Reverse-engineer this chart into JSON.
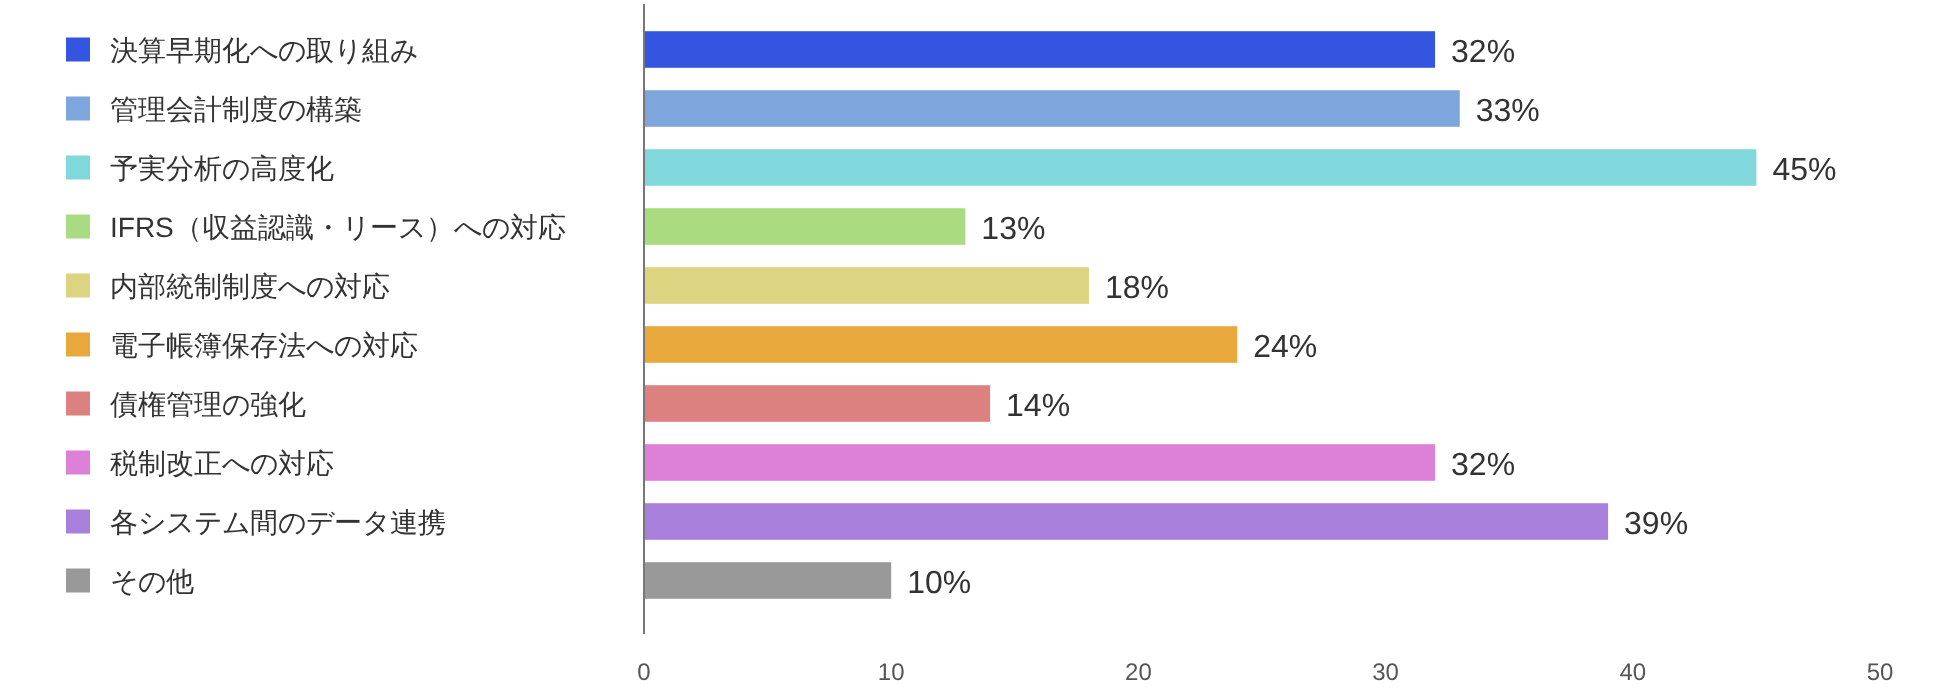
{
  "chart_data": {
    "type": "bar",
    "orientation": "horizontal",
    "categories": [
      "決算早期化への取り組み",
      "管理会計制度の構築",
      "予実分析の高度化",
      "IFRS（収益認識・リース）への対応",
      "内部統制制度への対応",
      "電子帳簿保存法への対応",
      "債権管理の強化",
      "税制改正への対応",
      "各システム間のデータ連携",
      "その他"
    ],
    "values": [
      32,
      33,
      45,
      13,
      18,
      24,
      14,
      32,
      39,
      10
    ],
    "colors": [
      "#3355e0",
      "#7ea6dc",
      "#80d8dc",
      "#a9dc80",
      "#dcd480",
      "#e8a83c",
      "#dc8080",
      "#dc80d8",
      "#a880dc",
      "#999999"
    ],
    "value_labels": [
      "32%",
      "33%",
      "45%",
      "13%",
      "18%",
      "24%",
      "14%",
      "32%",
      "39%",
      "10%"
    ],
    "xlim": [
      0,
      50
    ],
    "xticks": [
      0,
      10,
      20,
      30,
      40,
      50
    ],
    "grid": false
  }
}
